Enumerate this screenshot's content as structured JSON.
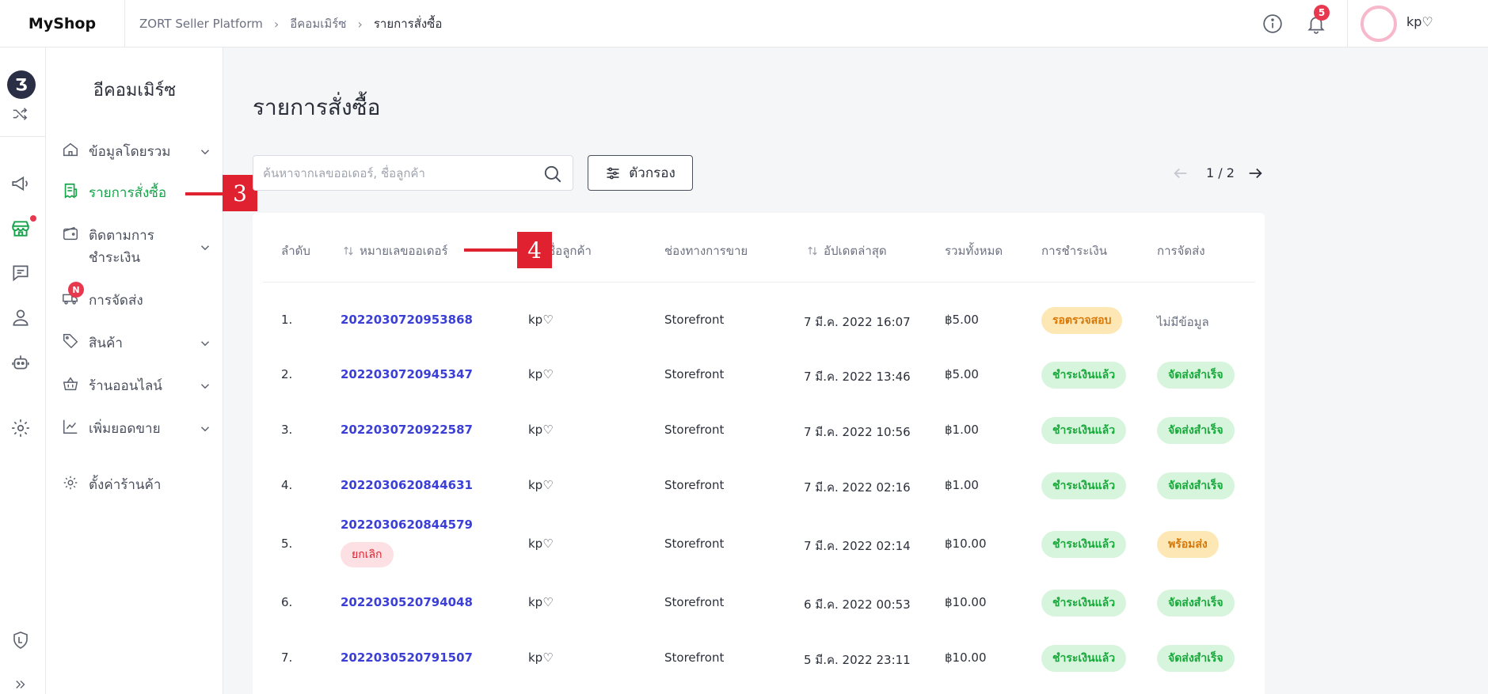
{
  "header": {
    "brand": "MyShop",
    "breadcrumbs": [
      "ZORT Seller Platform",
      "อีคอมเมิร์ซ",
      "รายการสั่งซื้อ"
    ],
    "notification_count": "5",
    "username": "kp♡"
  },
  "rail": {
    "logo_letter": "Ʒ",
    "icons": [
      "shuffle-icon",
      "megaphone-icon",
      "storefront-icon",
      "chat-icon",
      "user-icon",
      "robot-icon",
      "gear-icon",
      "shield-l-icon",
      "double-chevron-right-icon"
    ]
  },
  "sidebar": {
    "title": "อีคอมเมิร์ซ",
    "items": [
      {
        "label": "ข้อมูลโดยรวม",
        "icon": "home-icon",
        "has_chevron": true
      },
      {
        "label": "รายการสั่งซื้อ",
        "icon": "receipt-icon",
        "active": true
      },
      {
        "label": "ติดตามการ\nชำระเงิน",
        "icon": "wallet-icon",
        "has_chevron": true
      },
      {
        "label": "การจัดส่ง",
        "icon": "truck-icon",
        "badge": "N"
      },
      {
        "label": "สินค้า",
        "icon": "tag-icon",
        "has_chevron": true
      },
      {
        "label": "ร้านออนไลน์",
        "icon": "basket-icon",
        "has_chevron": true
      },
      {
        "label": "เพิ่มยอดขาย",
        "icon": "chart-icon",
        "has_chevron": true
      },
      {
        "label": "ตั้งค่าร้านค้า",
        "icon": "gear-icon"
      }
    ]
  },
  "annotations": {
    "callout_3": "3",
    "callout_4": "4"
  },
  "main": {
    "title": "รายการสั่งซื้อ",
    "search": {
      "placeholder": "ค้นหาจากเลขออเดอร์, ชื่อลูกค้า",
      "value": ""
    },
    "filter_label": "ตัวกรอง",
    "pager": "1 / 2",
    "columns": [
      "ลำดับ",
      "หมายเลขออเดอร์",
      "ชื่อลูกค้า",
      "ช่องทางการขาย",
      "อัปเดตล่าสุด",
      "รวมทั้งหมด",
      "การชำระเงิน",
      "การจัดส่ง"
    ],
    "rows": [
      {
        "no": "1.",
        "order": "202203072095386​8",
        "customer": "kp♡",
        "channel": "Storefront",
        "updated": "7 มี.ค. 2022 16:07",
        "total": "฿5.00",
        "payment": "รอตรวจสอบ",
        "payment_style": "orange",
        "shipping": "ไม่มีข้อมูล",
        "shipping_style": "none"
      },
      {
        "no": "2.",
        "order": "202203072094534​7",
        "customer": "kp♡",
        "channel": "Storefront",
        "updated": "7 มี.ค. 2022 13:46",
        "total": "฿5.00",
        "payment": "ชำระเงินแล้ว",
        "payment_style": "green",
        "shipping": "จัดส่งสำเร็จ",
        "shipping_style": "green"
      },
      {
        "no": "3.",
        "order": "202203072092258​7",
        "customer": "kp♡",
        "channel": "Storefront",
        "updated": "7 มี.ค. 2022 10:56",
        "total": "฿1.00",
        "payment": "ชำระเงินแล้ว",
        "payment_style": "green",
        "shipping": "จัดส่งสำเร็จ",
        "shipping_style": "green"
      },
      {
        "no": "4.",
        "order": "202203062084463​1",
        "customer": "kp♡",
        "channel": "Storefront",
        "updated": "7 มี.ค. 2022 02:16",
        "total": "฿1.00",
        "payment": "ชำระเงินแล้ว",
        "payment_style": "green",
        "shipping": "จัดส่งสำเร็จ",
        "shipping_style": "green"
      },
      {
        "no": "5.",
        "order": "202203062084457​9",
        "order_badge": "ยกเลิก",
        "customer": "kp♡",
        "channel": "Storefront",
        "updated": "7 มี.ค. 2022 02:14",
        "total": "฿10.00",
        "payment": "ชำระเงินแล้ว",
        "payment_style": "green",
        "shipping": "พร้อมส่ง",
        "shipping_style": "orange"
      },
      {
        "no": "6.",
        "order": "202203052079404​8",
        "customer": "kp♡",
        "channel": "Storefront",
        "updated": "6 มี.ค. 2022 00:53",
        "total": "฿10.00",
        "payment": "ชำระเงินแล้ว",
        "payment_style": "green",
        "shipping": "จัดส่งสำเร็จ",
        "shipping_style": "green"
      },
      {
        "no": "7.",
        "order": "202203052079150​7",
        "customer": "kp♡",
        "channel": "Storefront",
        "updated": "5 มี.ค. 2022 23:11",
        "total": "฿10.00",
        "payment": "ชำระเงินแล้ว",
        "payment_style": "green",
        "shipping": "จัดส่งสำเร็จ",
        "shipping_style": "green"
      }
    ]
  },
  "colors": {
    "accent_green": "#16a34a",
    "link_blue": "#3b3fd8",
    "alert_red": "#e8384f"
  }
}
